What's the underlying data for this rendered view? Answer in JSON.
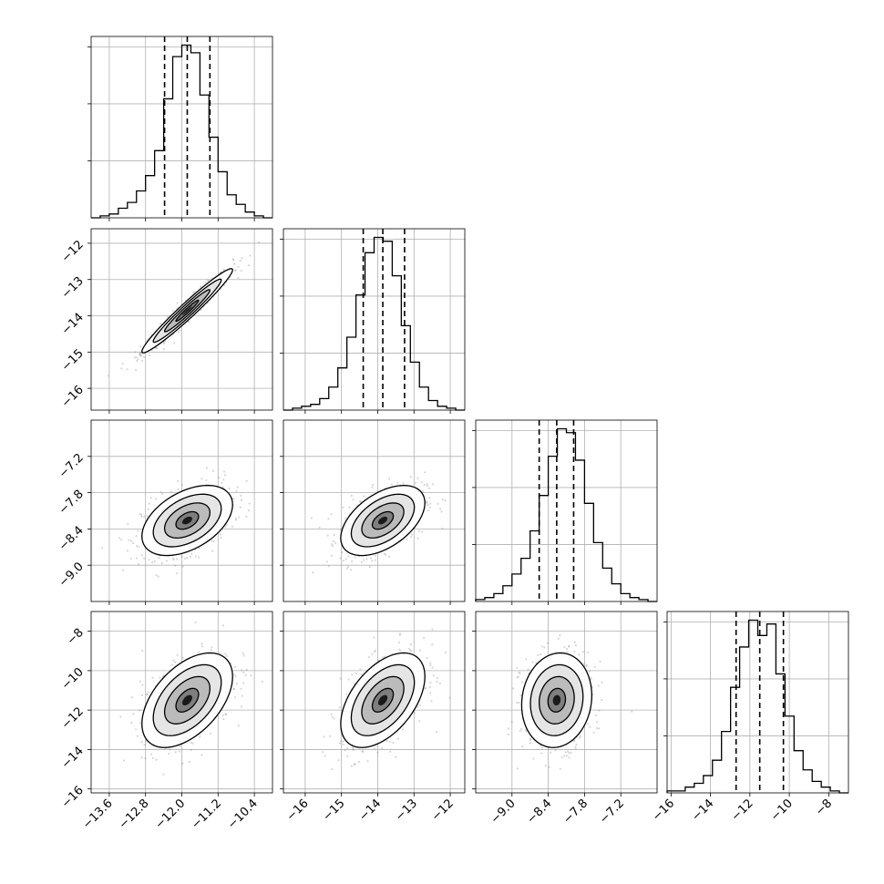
{
  "chart_data": {
    "type": "corner",
    "layout": "4x4 lower-triangle; diagonal = 1D histograms with dashed 16/50/84% quantile lines; off-diagonal = 2D density with contours, grid on",
    "grid": true,
    "parameters": [
      {
        "index": 0,
        "range": [
          -14.0,
          -10.0
        ],
        "ticks": [
          -13.6,
          -12.8,
          -12.0,
          -11.2,
          -10.4
        ],
        "tick_labels": [
          "−13.6",
          "−12.8",
          "−12.0",
          "−11.2",
          "−10.4"
        ],
        "quantiles": [
          -12.38,
          -11.88,
          -11.38
        ],
        "histogram": {
          "edges": [
            -14.0,
            -13.8,
            -13.6,
            -13.4,
            -13.2,
            -13.0,
            -12.8,
            -12.6,
            -12.4,
            -12.2,
            -12.0,
            -11.8,
            -11.6,
            -11.4,
            -11.2,
            -11.0,
            -10.8,
            -10.6,
            -10.4,
            -10.2,
            -10.0
          ],
          "counts": [
            0,
            1,
            2,
            5,
            8,
            14,
            22,
            35,
            62,
            84,
            90,
            86,
            64,
            42,
            24,
            12,
            7,
            3,
            1,
            0
          ]
        }
      },
      {
        "index": 1,
        "range": [
          -16.6,
          -11.6
        ],
        "ticks": [
          -16,
          -15,
          -14,
          -13,
          -12
        ],
        "tick_labels": [
          "−16",
          "−15",
          "−14",
          "−13",
          "−12"
        ],
        "quantiles": [
          -14.4,
          -13.86,
          -13.26
        ],
        "histogram": {
          "edges": [
            -16.6,
            -16.35,
            -16.1,
            -15.85,
            -15.6,
            -15.35,
            -15.1,
            -14.85,
            -14.6,
            -14.35,
            -14.1,
            -13.85,
            -13.6,
            -13.35,
            -13.1,
            -12.85,
            -12.6,
            -12.35,
            -12.1,
            -11.85,
            -11.6
          ],
          "counts": [
            0,
            1,
            2,
            3,
            6,
            12,
            22,
            38,
            60,
            82,
            90,
            88,
            70,
            44,
            25,
            12,
            5,
            2,
            1,
            0
          ]
        }
      },
      {
        "index": 2,
        "range": [
          -9.6,
          -6.6
        ],
        "ticks": [
          -9.0,
          -8.4,
          -7.8,
          -7.2
        ],
        "tick_labels": [
          "−9.0",
          "−8.4",
          "−7.8",
          "−7.2"
        ],
        "quantiles": [
          -8.55,
          -8.26,
          -7.98
        ],
        "histogram": {
          "edges": [
            -9.6,
            -9.45,
            -9.3,
            -9.15,
            -9.0,
            -8.85,
            -8.7,
            -8.55,
            -8.4,
            -8.25,
            -8.1,
            -7.95,
            -7.8,
            -7.65,
            -7.5,
            -7.35,
            -7.2,
            -7.05,
            -6.9,
            -6.75,
            -6.6
          ],
          "counts": [
            1,
            2,
            4,
            8,
            14,
            22,
            36,
            54,
            74,
            88,
            86,
            72,
            50,
            30,
            17,
            9,
            4,
            2,
            1,
            0
          ]
        }
      },
      {
        "index": 3,
        "range": [
          -16.2,
          -7.0
        ],
        "ticks": [
          -16,
          -14,
          -12,
          -10,
          -8
        ],
        "tick_labels": [
          "−16",
          "−14",
          "−12",
          "−10",
          "−8"
        ],
        "quantiles": [
          -12.7,
          -11.5,
          -10.3
        ],
        "histogram": {
          "edges": [
            -16.2,
            -15.74,
            -15.28,
            -14.82,
            -14.36,
            -13.9,
            -13.44,
            -12.98,
            -12.52,
            -12.06,
            -11.6,
            -11.14,
            -10.68,
            -10.22,
            -9.76,
            -9.3,
            -8.84,
            -8.38,
            -7.92,
            -7.46,
            -7.0
          ],
          "counts": [
            1,
            1,
            3,
            5,
            9,
            17,
            32,
            55,
            76,
            90,
            82,
            88,
            62,
            40,
            22,
            12,
            6,
            3,
            1,
            0
          ]
        }
      }
    ],
    "pairs": [
      {
        "x_param": 0,
        "y_param": 1,
        "mean": [
          -11.88,
          -13.86
        ],
        "std": [
          0.5,
          0.58
        ],
        "rho": 0.97
      },
      {
        "x_param": 0,
        "y_param": 2,
        "mean": [
          -11.88,
          -8.26
        ],
        "std": [
          0.5,
          0.29
        ],
        "rho": 0.45
      },
      {
        "x_param": 1,
        "y_param": 2,
        "mean": [
          -13.86,
          -8.26
        ],
        "std": [
          0.58,
          0.29
        ],
        "rho": 0.5
      },
      {
        "x_param": 0,
        "y_param": 3,
        "mean": [
          -11.88,
          -11.5
        ],
        "std": [
          0.5,
          1.2
        ],
        "rho": 0.5
      },
      {
        "x_param": 1,
        "y_param": 3,
        "mean": [
          -13.86,
          -11.5
        ],
        "std": [
          0.58,
          1.2
        ],
        "rho": 0.5
      },
      {
        "x_param": 2,
        "y_param": 3,
        "mean": [
          -8.26,
          -11.5
        ],
        "std": [
          0.29,
          1.2
        ],
        "rho": 0.1
      }
    ],
    "contour_levels_sigma": [
      0.5,
      1.0,
      1.5,
      2.0
    ]
  }
}
